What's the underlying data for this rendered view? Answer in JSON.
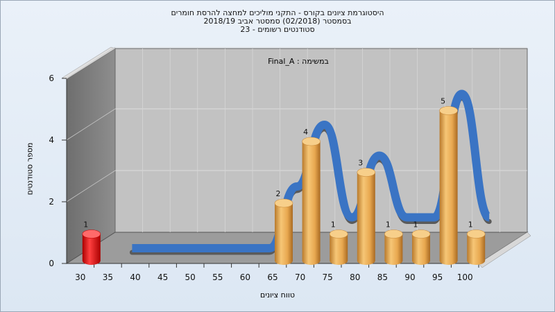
{
  "title": {
    "line1": "היסטוגרמת ציונים בקורס - התקני מוליכים למחצה להרסת חומרים",
    "line2": "בסמסטר  (02/2018)  סמסטר אביב 2018/19",
    "line3": "סטודנטים רשומים - 23"
  },
  "chart_data": {
    "type": "bar",
    "subtitle": "Final_A : במשימה",
    "xlabel": "טווח ציונים",
    "ylabel": "מספר סטודנטים",
    "categories": [
      "30",
      "35",
      "40",
      "45",
      "50",
      "55",
      "60",
      "65",
      "70",
      "75",
      "80",
      "85",
      "90",
      "95",
      "100"
    ],
    "values": [
      1,
      0,
      0,
      0,
      0,
      0,
      0,
      2,
      4,
      1,
      3,
      1,
      1,
      5,
      1
    ],
    "yticks": [
      0,
      2,
      4,
      6
    ],
    "ylim": [
      0,
      6
    ],
    "grid": true,
    "colors": {
      "fail_bar": "#e01818",
      "pass_bar": "#e8a850",
      "trend_line": "#3a74c4",
      "trend_shadow": "#5a5a5a",
      "back_wall": "#bdbdbd",
      "side_wall": "#808080",
      "floor": "#9a9a9a"
    }
  }
}
